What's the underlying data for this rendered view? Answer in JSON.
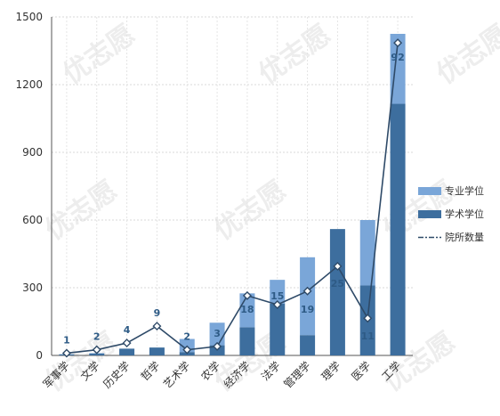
{
  "chart_data": {
    "type": "bar",
    "stacked": true,
    "categories": [
      "军事学",
      "文学",
      "历史学",
      "哲学",
      "艺术学",
      "农学",
      "经济学",
      "法学",
      "管理学",
      "理学",
      "医学",
      "工学"
    ],
    "series": [
      {
        "name": "学术学位",
        "type": "bar",
        "color": "#3d6e9e",
        "values": [
          5,
          8,
          30,
          35,
          15,
          45,
          125,
          230,
          90,
          560,
          310,
          1115
        ]
      },
      {
        "name": "专业学位",
        "type": "bar",
        "color": "#7aa6d8",
        "values": [
          0,
          2,
          0,
          0,
          58,
          100,
          150,
          105,
          345,
          0,
          290,
          310
        ]
      },
      {
        "name": "院所数量",
        "type": "line",
        "color": "#2e4a68",
        "plotted_values": [
          10,
          25,
          55,
          130,
          25,
          40,
          265,
          225,
          285,
          395,
          165,
          1385
        ],
        "labels": [
          "1",
          "2",
          "4",
          "9",
          "2",
          "3",
          "18",
          "15",
          "19",
          "25",
          "11",
          "92"
        ]
      }
    ],
    "ylim": [
      0,
      1500
    ],
    "yticks": [
      0,
      300,
      600,
      900,
      1200,
      1500
    ],
    "grid": true,
    "legend_position": "right",
    "watermark": "优志愿"
  }
}
